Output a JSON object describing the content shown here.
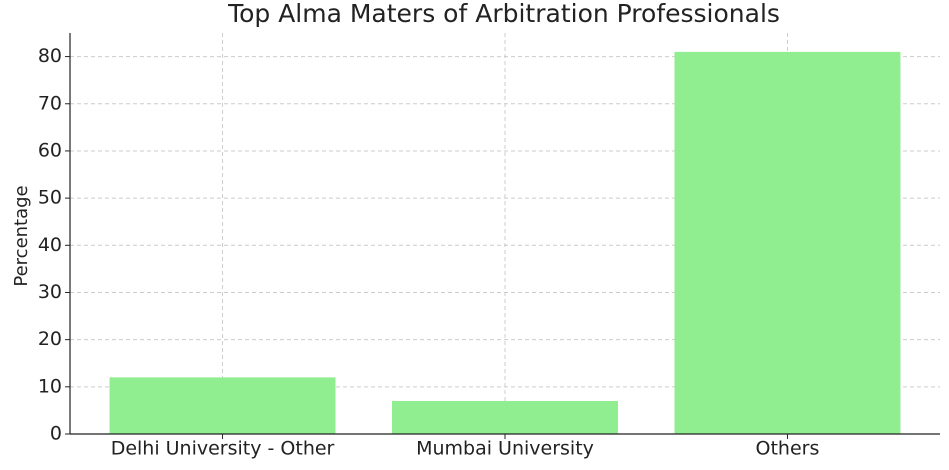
{
  "chart_data": {
    "type": "bar",
    "title": "Top Alma Maters of Arbitration Professionals",
    "y_label": "Percentage",
    "categories": [
      "Delhi University - Other",
      "Mumbai University",
      "Others"
    ],
    "values": [
      12,
      7,
      81
    ],
    "color": "#90ee90",
    "ylim": [
      0,
      85
    ],
    "yticks": [
      0,
      10,
      20,
      30,
      40,
      50,
      60,
      70,
      80
    ],
    "grid": true
  }
}
